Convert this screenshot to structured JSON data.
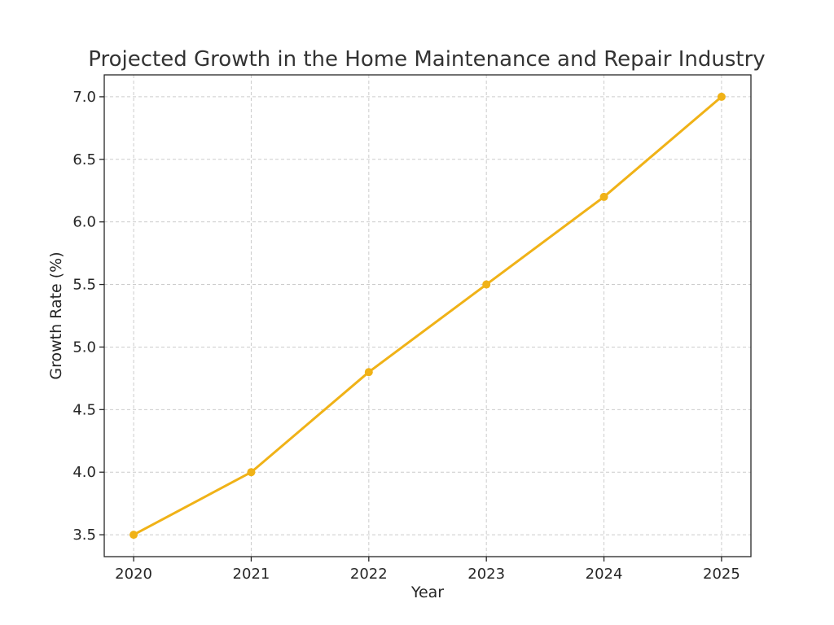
{
  "chart_data": {
    "type": "line",
    "title": "Projected Growth in the Home Maintenance and Repair Industry",
    "xlabel": "Year",
    "ylabel": "Growth Rate (%)",
    "x": [
      2020,
      2021,
      2022,
      2023,
      2024,
      2025
    ],
    "x_tick_labels": [
      "2020",
      "2021",
      "2022",
      "2023",
      "2024",
      "2025"
    ],
    "y_ticks": [
      3.5,
      4.0,
      4.5,
      5.0,
      5.5,
      6.0,
      6.5,
      7.0
    ],
    "y_tick_labels": [
      "3.5",
      "4.0",
      "4.5",
      "5.0",
      "5.5",
      "6.0",
      "6.5",
      "7.0"
    ],
    "series": [
      {
        "values": [
          3.5,
          4.0,
          4.8,
          5.5,
          6.2,
          7.0
        ],
        "color": "#f0b217"
      }
    ],
    "xlim": [
      2019.75,
      2025.25
    ],
    "ylim": [
      3.325,
      7.175
    ],
    "grid": true,
    "marker": "circle"
  }
}
